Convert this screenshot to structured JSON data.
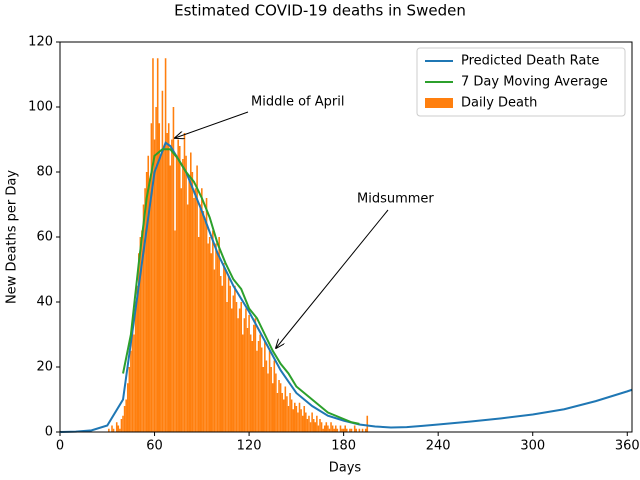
{
  "chart_data": {
    "type": "combo",
    "title": "Estimated COVID-19 deaths in Sweden",
    "x_label": "Days",
    "y_label": "New Deaths per Day",
    "xlim": [
      0,
      363
    ],
    "ylim": [
      0,
      120
    ],
    "xticks": [
      0,
      60,
      120,
      180,
      240,
      300,
      360
    ],
    "yticks": [
      0,
      20,
      40,
      60,
      80,
      100,
      120
    ],
    "legend": "upper right",
    "annotations": [
      {
        "text": "Middle of April"
      },
      {
        "text": "Midsummer"
      }
    ],
    "series": [
      {
        "name": "Predicted Death Rate",
        "type": "line",
        "color": "#1f77b4",
        "x": [
          0,
          10,
          20,
          30,
          40,
          50,
          60,
          67,
          70,
          80,
          90,
          100,
          110,
          120,
          130,
          140,
          150,
          160,
          170,
          180,
          190,
          200,
          210,
          220,
          230,
          240,
          260,
          280,
          300,
          320,
          340,
          360,
          363
        ],
        "values": [
          0,
          0.1,
          0.5,
          2,
          10,
          45,
          80,
          89,
          88,
          80,
          68,
          55,
          45,
          37,
          28,
          19,
          12,
          8,
          5,
          3.5,
          2.3,
          1.7,
          1.4,
          1.5,
          1.9,
          2.3,
          3.2,
          4.2,
          5.4,
          7,
          9.5,
          12.5,
          13
        ]
      },
      {
        "name": "7 Day Moving Average",
        "type": "line",
        "color": "#2ca02c",
        "x": [
          40,
          45,
          50,
          55,
          60,
          65,
          70,
          75,
          80,
          85,
          90,
          95,
          100,
          105,
          110,
          115,
          120,
          125,
          130,
          135,
          140,
          145,
          150,
          155,
          160,
          165,
          170,
          175,
          180,
          185,
          190
        ],
        "values": [
          18,
          30,
          52,
          72,
          85,
          87,
          87,
          84,
          80,
          77,
          72,
          66,
          58,
          52,
          47,
          44,
          38,
          35,
          30,
          25,
          21,
          18,
          14,
          12,
          10,
          8,
          6,
          5,
          4,
          3,
          2.5
        ]
      },
      {
        "name": "Daily Death",
        "type": "bar",
        "color": "#ff7f0e",
        "x_start": 30,
        "values": [
          0,
          1,
          0,
          2,
          1,
          0,
          3,
          2,
          1,
          4,
          5,
          8,
          10,
          15,
          20,
          25,
          32,
          30,
          40,
          45,
          55,
          60,
          62,
          70,
          75,
          80,
          85,
          78,
          95,
          115,
          90,
          100,
          115,
          95,
          85,
          105,
          88,
          115,
          92,
          95,
          82,
          90,
          100,
          62,
          85,
          90,
          88,
          75,
          84,
          92,
          85,
          70,
          78,
          86,
          80,
          72,
          75,
          82,
          60,
          70,
          75,
          68,
          65,
          72,
          58,
          60,
          55,
          62,
          50,
          58,
          55,
          60,
          48,
          45,
          52,
          50,
          40,
          48,
          45,
          38,
          42,
          45,
          40,
          35,
          38,
          40,
          30,
          35,
          38,
          32,
          36,
          30,
          28,
          33,
          35,
          25,
          28,
          30,
          26,
          20,
          28,
          22,
          18,
          25,
          20,
          15,
          22,
          18,
          12,
          16,
          15,
          12,
          10,
          14,
          11,
          8,
          12,
          10,
          7,
          9,
          8,
          6,
          9,
          7,
          5,
          8,
          6,
          4,
          5,
          3,
          6,
          4,
          3,
          5,
          2,
          4,
          3,
          1,
          2,
          3,
          2,
          1,
          3,
          2,
          1,
          2,
          1,
          0,
          2,
          1,
          1,
          2,
          1,
          0,
          1,
          1,
          0,
          2,
          1,
          0,
          1,
          0,
          1,
          0,
          1,
          5
        ]
      }
    ]
  }
}
